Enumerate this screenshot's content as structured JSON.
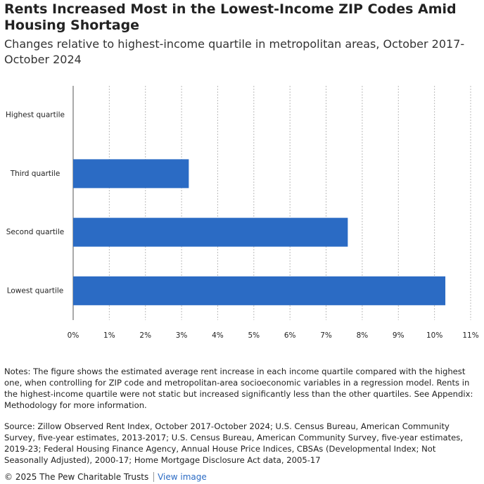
{
  "chart_data": {
    "type": "barh",
    "title": "Rents Increased Most in the Lowest-Income ZIP Codes Amid Housing Shortage",
    "subtitle": "Changes relative to highest-income quartile in metropolitan areas, October 2017-October 2024",
    "categories": [
      "Highest quartile",
      "Third quartile",
      "Second quartile",
      "Lowest quartile"
    ],
    "values": [
      0,
      3.2,
      7.6,
      10.3
    ],
    "color": "#2b6bc4",
    "xlim": [
      0,
      11
    ],
    "xticks": [
      {
        "value": 0,
        "label": "0%"
      },
      {
        "value": 1,
        "label": "1%"
      },
      {
        "value": 2,
        "label": "2%"
      },
      {
        "value": 3,
        "label": "3%"
      },
      {
        "value": 4,
        "label": "4%"
      },
      {
        "value": 5,
        "label": "5%"
      },
      {
        "value": 6,
        "label": "6%"
      },
      {
        "value": 7,
        "label": "7%"
      },
      {
        "value": 8,
        "label": "8%"
      },
      {
        "value": 9,
        "label": "9%"
      },
      {
        "value": 10,
        "label": "10%"
      },
      {
        "value": 11,
        "label": "11%"
      }
    ],
    "grid": true
  },
  "notes": "Notes: The figure shows the estimated average rent increase in each income quartile compared with the highest one, when controlling for ZIP code and metropolitan-area socioeconomic variables in a regression model. Rents in the highest-income quartile were not static but increased significantly less than the other quartiles. See Appendix: Methodology for more information.",
  "source": "Source: Zillow Observed Rent Index, October 2017-October 2024; U.S. Census Bureau, American Community Survey, five-year estimates, 2013-2017; U.S. Census Bureau, American Community Survey, five-year estimates, 2019-23; Federal Housing Finance Agency, Annual House Price Indices, CBSAs (Developmental Index; Not Seasonally Adjusted), 2000-17; Home Mortgage Disclosure Act data, 2005-17",
  "footer": {
    "copyright": "© 2025 The Pew Charitable Trusts",
    "link": "View image"
  }
}
